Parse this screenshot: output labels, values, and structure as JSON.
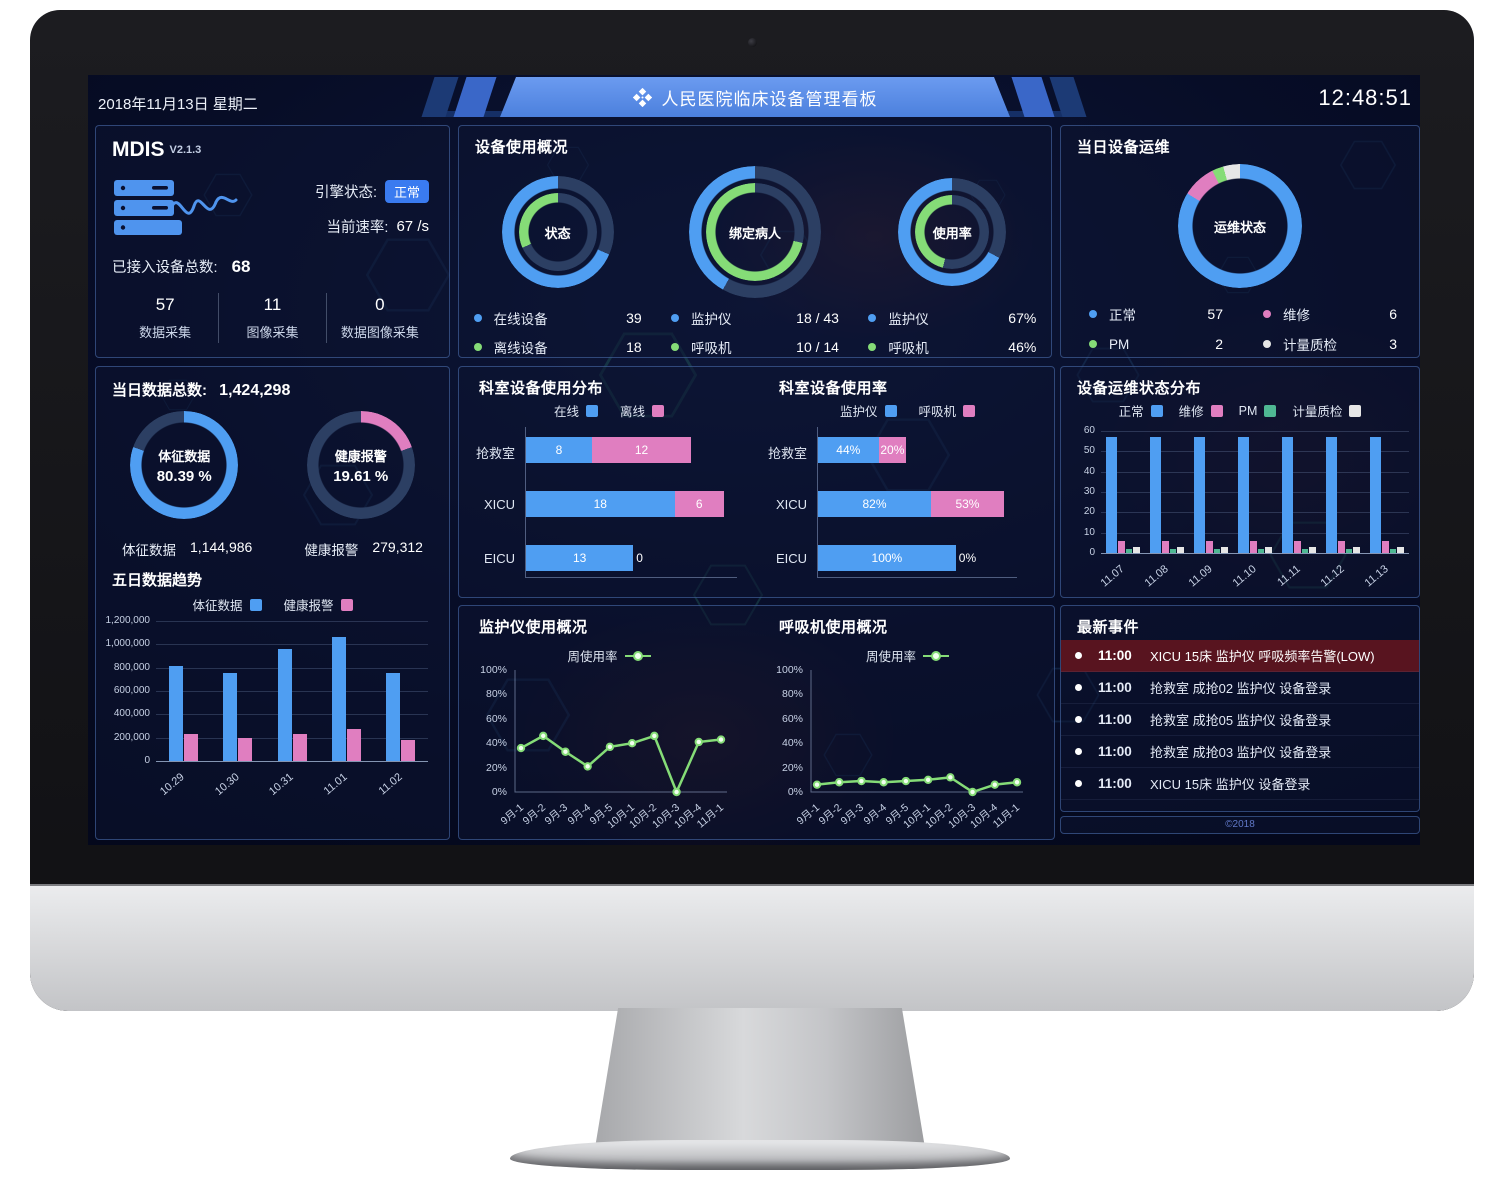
{
  "colors": {
    "blue": "#4f9ef2",
    "green": "#85dc77",
    "pink": "#e07ec0",
    "teal": "#4fb893",
    "gray": "#e6e6e6",
    "track": "#2c3f63",
    "alarm_bg": "#58141f",
    "badge_blue": "#3a7bf0",
    "banner_blue": "#5b8fe8"
  },
  "header": {
    "date": "2018年11月13日 星期二",
    "title": "人民医院临床设备管理看板",
    "time": "12:48:51"
  },
  "mdis": {
    "name": "MDIS",
    "version": "V2.1.3",
    "engine_label": "引擎状态:",
    "engine_status": "正常",
    "rate_label": "当前速率:",
    "rate_value": "67 /s",
    "total_label": "已接入设备总数:",
    "total_value": "68",
    "stats": [
      {
        "value": "57",
        "label": "数据采集"
      },
      {
        "value": "11",
        "label": "图像采集"
      },
      {
        "value": "0",
        "label": "数据图像采集"
      }
    ]
  },
  "panels": {
    "usage_overview": {
      "title": "设备使用概况",
      "donuts": [
        {
          "label": "状态",
          "outer": [
            [
              "track",
              31.6
            ],
            [
              "blue",
              68.4
            ]
          ],
          "inner": [
            [
              "track",
              68.4
            ],
            [
              "green",
              31.6
            ]
          ],
          "legend": [
            {
              "color": "blue",
              "name": "在线设备",
              "value": "39"
            },
            {
              "color": "green",
              "name": "离线设备",
              "value": "18"
            }
          ]
        },
        {
          "label": "绑定病人",
          "outer": [
            [
              "track",
              58.1
            ],
            [
              "blue",
              41.9
            ]
          ],
          "inner": [
            [
              "track",
              28.6
            ],
            [
              "green",
              71.4
            ]
          ],
          "legend": [
            {
              "color": "blue",
              "name": "监护仪",
              "value": "18 / 43"
            },
            {
              "color": "green",
              "name": "呼吸机",
              "value": "10 / 14"
            }
          ]
        },
        {
          "label": "使用率",
          "outer": [
            [
              "track",
              33
            ],
            [
              "blue",
              67
            ]
          ],
          "inner": [
            [
              "track",
              54
            ],
            [
              "green",
              46
            ]
          ],
          "legend": [
            {
              "color": "blue",
              "name": "监护仪",
              "value": "67%"
            },
            {
              "color": "green",
              "name": "呼吸机",
              "value": "46%"
            }
          ]
        }
      ]
    },
    "ops_today": {
      "title": "当日设备运维",
      "label": "运维状态",
      "slices": [
        [
          "blue",
          83.8
        ],
        [
          "pink",
          8.8
        ],
        [
          "green",
          3.0
        ],
        [
          "gray",
          4.4
        ]
      ],
      "legend": [
        {
          "color": "blue",
          "name": "正常",
          "value": "57"
        },
        {
          "color": "pink",
          "name": "维修",
          "value": "6"
        },
        {
          "color": "green",
          "name": "PM",
          "value": "2"
        },
        {
          "color": "gray",
          "name": "计量质检",
          "value": "3"
        }
      ]
    },
    "data_today": {
      "title": "当日数据总数:",
      "total": "1,424,298",
      "donuts": [
        {
          "name": "体征数据",
          "pct_label": "80.39 %",
          "slices": [
            [
              "blue",
              80.39
            ],
            [
              "track",
              19.61
            ]
          ],
          "stat_name": "体征数据",
          "stat_value": "1,144,986"
        },
        {
          "name": "健康报警",
          "pct_label": "19.61 %",
          "slices": [
            [
              "pink",
              19.61
            ],
            [
              "track",
              80.39
            ]
          ],
          "stat_name": "健康报警",
          "stat_value": "279,312"
        }
      ]
    },
    "trend": {
      "title": "五日数据趋势",
      "type": "bar",
      "legend": [
        {
          "color": "blue",
          "label": "体征数据"
        },
        {
          "color": "pink",
          "label": "健康报警"
        }
      ],
      "categories": [
        "10.29",
        "10.30",
        "10.31",
        "11.01",
        "11.02"
      ],
      "series": [
        {
          "color": "blue",
          "name": "体征数据",
          "values": [
            815000,
            757000,
            959000,
            1060000,
            757000
          ]
        },
        {
          "color": "pink",
          "name": "健康报警",
          "values": [
            233000,
            196000,
            233000,
            273000,
            181000
          ]
        }
      ],
      "ylim": [
        0,
        1200000
      ],
      "yticks": [
        "1,200,000",
        "1,000,000",
        "800,000",
        "600,000",
        "400,000",
        "200,000",
        "0"
      ]
    },
    "dept_distribution": {
      "title": "科室设备使用分布",
      "type": "hbar-stacked",
      "legend": [
        {
          "color": "blue",
          "label": "在线"
        },
        {
          "color": "pink",
          "label": "离线"
        }
      ],
      "categories": [
        "抢救室",
        "XICU",
        "EICU"
      ],
      "max": 24,
      "series": [
        {
          "color": "blue",
          "name": "在线",
          "values": [
            8,
            18,
            13
          ],
          "suffix": ""
        },
        {
          "color": "pink",
          "name": "离线",
          "values": [
            12,
            6,
            0
          ],
          "suffix": ""
        }
      ]
    },
    "dept_usage": {
      "title": "科室设备使用率",
      "type": "hbar-stacked",
      "legend": [
        {
          "color": "blue",
          "label": "监护仪"
        },
        {
          "color": "pink",
          "label": "呼吸机"
        }
      ],
      "categories": [
        "抢救室",
        "XICU",
        "EICU"
      ],
      "max": 135,
      "series": [
        {
          "color": "blue",
          "name": "监护仪",
          "values": [
            44,
            82,
            100
          ],
          "suffix": "%"
        },
        {
          "color": "pink",
          "name": "呼吸机",
          "values": [
            20,
            53,
            0
          ],
          "suffix": "%"
        }
      ]
    },
    "ops_distribution": {
      "title": "设备运维状态分布",
      "type": "bar",
      "legend": [
        {
          "color": "blue",
          "label": "正常"
        },
        {
          "color": "pink",
          "label": "维修"
        },
        {
          "color": "teal",
          "label": "PM"
        },
        {
          "color": "gray",
          "label": "计量质检"
        }
      ],
      "categories": [
        "11.07",
        "11.08",
        "11.09",
        "11.10",
        "11.11",
        "11.12",
        "11.13"
      ],
      "ylim": [
        0,
        60
      ],
      "yticks": [
        "60",
        "50",
        "40",
        "30",
        "20",
        "10",
        "0"
      ],
      "series": [
        {
          "color": "blue",
          "name": "正常",
          "values": [
            57,
            57,
            57,
            57,
            57,
            57,
            57
          ]
        },
        {
          "color": "pink",
          "name": "维修",
          "values": [
            6,
            6,
            6,
            6,
            6,
            6,
            6
          ]
        },
        {
          "color": "teal",
          "name": "PM",
          "values": [
            2,
            2,
            2,
            2,
            2,
            2,
            2
          ]
        },
        {
          "color": "gray",
          "name": "计量质检",
          "values": [
            3,
            3,
            3,
            3,
            3,
            3,
            3
          ]
        }
      ]
    },
    "monitor_usage": {
      "title": "监护仪使用概况",
      "type": "line",
      "legend_label": "周使用率",
      "x": [
        "9月-1",
        "9月-2",
        "9月-3",
        "9月-4",
        "9月-5",
        "10月-1",
        "10月-2",
        "10月-3",
        "10月-4",
        "11月-1"
      ],
      "values": [
        36,
        46,
        33,
        21,
        37,
        40,
        46,
        0,
        41,
        43
      ],
      "ylim": [
        0,
        100
      ],
      "yticks": [
        "100%",
        "80%",
        "60%",
        "40%",
        "20%",
        "0%"
      ]
    },
    "ventilator_usage": {
      "title": "呼吸机使用概况",
      "type": "line",
      "legend_label": "周使用率",
      "x": [
        "9月-1",
        "9月-2",
        "9月-3",
        "9月-4",
        "9月-5",
        "10月-1",
        "10月-2",
        "10月-3",
        "10月-4",
        "11月-1"
      ],
      "values": [
        6,
        8,
        9,
        8,
        9,
        10,
        12,
        0,
        6,
        8
      ],
      "ylim": [
        0,
        100
      ],
      "yticks": [
        "100%",
        "80%",
        "60%",
        "40%",
        "20%",
        "0%"
      ]
    },
    "events": {
      "title": "最新事件",
      "items": [
        {
          "time": "11:00",
          "text": "XICU 15床 监护仪 呼吸频率告警(LOW)",
          "alarm": true
        },
        {
          "time": "11:00",
          "text": "抢救室 成抢02 监护仪 设备登录",
          "alarm": false
        },
        {
          "time": "11:00",
          "text": "抢救室 成抢05 监护仪 设备登录",
          "alarm": false
        },
        {
          "time": "11:00",
          "text": "抢救室 成抢03 监护仪 设备登录",
          "alarm": false
        },
        {
          "time": "11:00",
          "text": "XICU 15床 监护仪 设备登录",
          "alarm": false
        }
      ],
      "footer": "©2018"
    }
  }
}
